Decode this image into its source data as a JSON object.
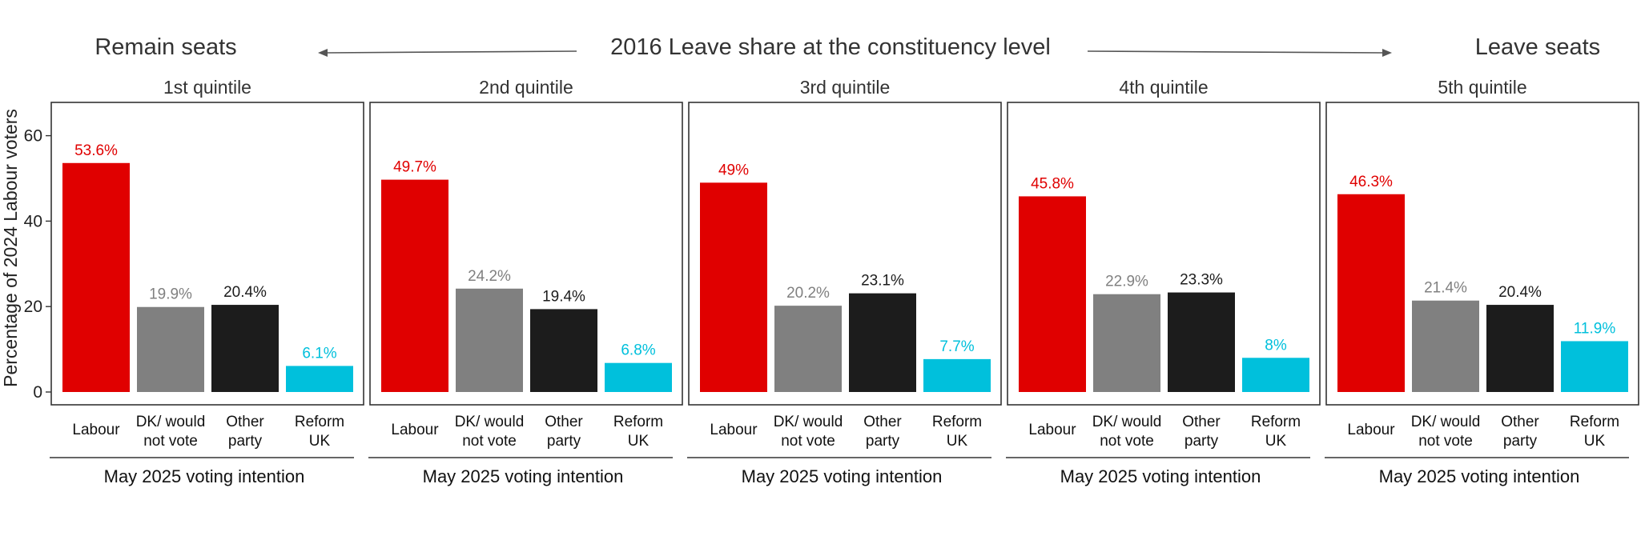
{
  "header": {
    "left_label": "Remain seats",
    "center_label": "2016 Leave share at the constituency level",
    "right_label": "Leave seats"
  },
  "chart_data": {
    "type": "bar",
    "ylabel": "Percentage of 2024 Labour voters",
    "xlabel": "May 2025 voting intention",
    "ylim": [
      0,
      65
    ],
    "yticks": [
      0,
      20,
      40,
      60
    ],
    "categories": [
      "Labour",
      "DK/ would not vote",
      "Other party",
      "Reform UK"
    ],
    "category_lines": [
      [
        "Labour"
      ],
      [
        "DK/ would",
        "not vote"
      ],
      [
        "Other",
        "party"
      ],
      [
        "Reform",
        "UK"
      ]
    ],
    "colors": [
      "#e00000",
      "#808080",
      "#1c1c1c",
      "#00c0dc"
    ],
    "label_colors": [
      "#e00000",
      "#808080",
      "#1c1c1c",
      "#00c0dc"
    ],
    "panels": [
      {
        "title": "1st quintile",
        "values": [
          53.6,
          19.9,
          20.4,
          6.1
        ],
        "labels": [
          "53.6%",
          "19.9%",
          "20.4%",
          "6.1%"
        ]
      },
      {
        "title": "2nd quintile",
        "values": [
          49.7,
          24.2,
          19.4,
          6.8
        ],
        "labels": [
          "49.7%",
          "24.2%",
          "19.4%",
          "6.8%"
        ]
      },
      {
        "title": "3rd quintile",
        "values": [
          49,
          20.2,
          23.1,
          7.7
        ],
        "labels": [
          "49%",
          "20.2%",
          "23.1%",
          "7.7%"
        ]
      },
      {
        "title": "4th quintile",
        "values": [
          45.8,
          22.9,
          23.3,
          8
        ],
        "labels": [
          "45.8%",
          "22.9%",
          "23.3%",
          "8%"
        ]
      },
      {
        "title": "5th quintile",
        "values": [
          46.3,
          21.4,
          20.4,
          11.9
        ],
        "labels": [
          "46.3%",
          "21.4%",
          "20.4%",
          "11.9%"
        ]
      }
    ]
  }
}
